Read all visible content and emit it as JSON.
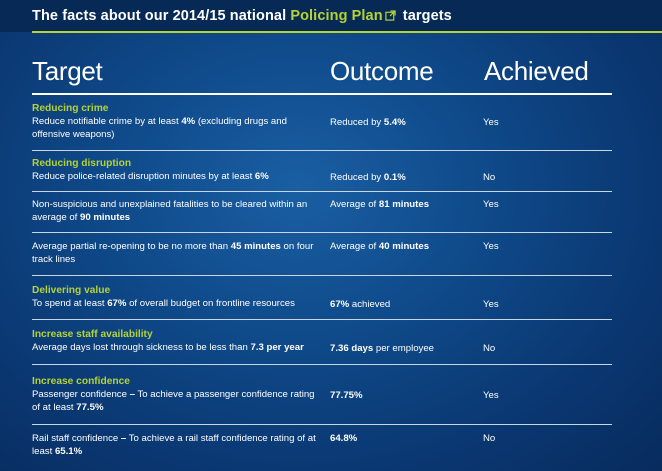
{
  "header": {
    "title_prefix": "The facts about our 2014/15 national ",
    "title_link": "Policing Plan",
    "title_suffix": " targets",
    "accent_color": "#b5d335",
    "link_icon": "external-link-icon"
  },
  "columns": {
    "target": "Target",
    "outcome": "Outcome",
    "achieved": "Achieved"
  },
  "rows": [
    {
      "section": "Reducing crime",
      "t1": "Reduce notifiable crime by at least ",
      "t1b": "4%",
      "t2": " (excluding drugs and offensive weapons)",
      "o1": "Reduced by ",
      "o1b": "5.4%",
      "o2": "",
      "achieved": "Yes"
    },
    {
      "section": "Reducing disruption",
      "t1": "Reduce police-related disruption minutes by at least ",
      "t1b": "6%",
      "t2": "",
      "o1": "Reduced by ",
      "o1b": "0.1%",
      "o2": "",
      "achieved": "No"
    },
    {
      "section": "",
      "t1": "Non-suspicious and unexplained fatalities to be cleared within an average of ",
      "t1b": "90 minutes",
      "t2": "",
      "o1": "Average of ",
      "o1b": "81 minutes",
      "o2": "",
      "achieved": "Yes"
    },
    {
      "section": "",
      "t1": "Average partial re-opening to be no more than ",
      "t1b": "45 minutes",
      "t2": " on four track lines",
      "o1": "Average of ",
      "o1b": "40 minutes",
      "o2": "",
      "achieved": "Yes"
    },
    {
      "section": "Delivering value",
      "t1": "To spend at least ",
      "t1b": "67%",
      "t2": " of overall budget on frontline resources",
      "o1": "",
      "o1b": "67%",
      "o2": " achieved",
      "achieved": "Yes"
    },
    {
      "section": "Increase staff availability",
      "t1": "Average days lost through sickness to be less than ",
      "t1b": "7.3 per year",
      "t2": "",
      "o1": "",
      "o1b": "7.36 days",
      "o2": " per employee",
      "achieved": "No"
    },
    {
      "section": "Increase confidence",
      "t1": "Passenger confidence ",
      "t1b": "–",
      "t2": " To achieve a passenger confidence rating of at least ",
      "t2b": "77.5%",
      "o1": "",
      "o1b": "77.75%",
      "o2": "",
      "achieved": "Yes"
    },
    {
      "section": "",
      "t1": "Rail staff confidence ",
      "t1b": "–",
      "t2": " To achieve a rail staff confidence rating of at least ",
      "t2b": "65.1%",
      "o1": "",
      "o1b": "64.8%",
      "o2": "",
      "achieved": "No"
    }
  ]
}
